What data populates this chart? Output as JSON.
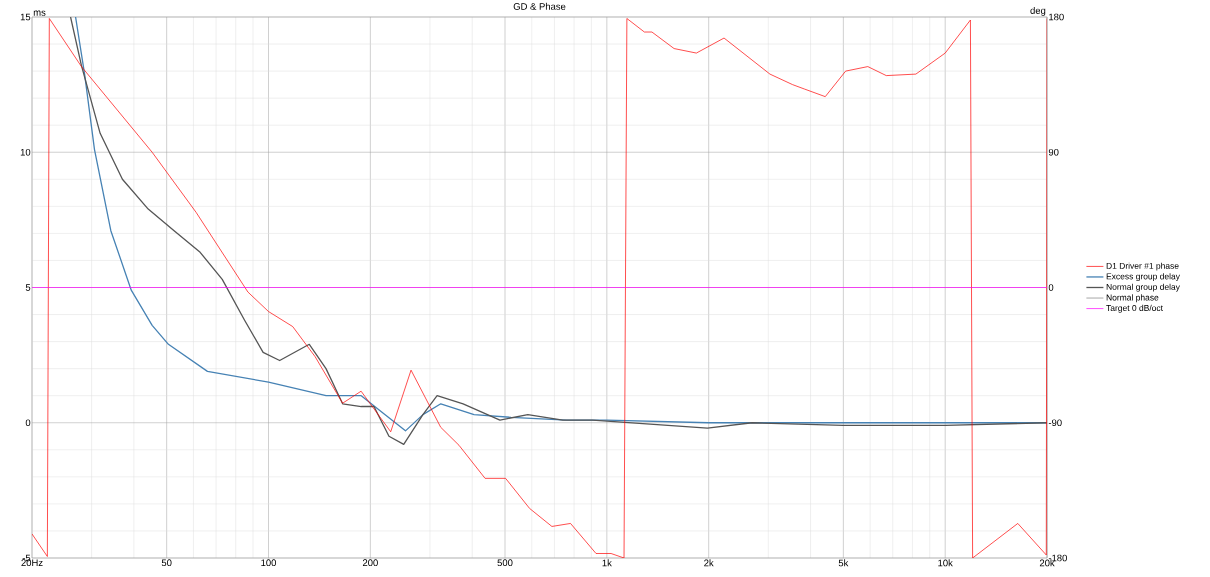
{
  "chart_data": {
    "type": "line",
    "title": "GD & Phase",
    "ylabel": "ms",
    "y2label": "deg",
    "xlim": [
      20,
      20000
    ],
    "log": "x",
    "xticks": [
      {
        "value": 20,
        "label": "20Hz"
      },
      50,
      100,
      200,
      500,
      {
        "value": 1000,
        "label": "1k"
      },
      {
        "value": 2000,
        "label": "2k"
      },
      {
        "value": 5000,
        "label": "5k"
      },
      {
        "value": 10000,
        "label": "10k"
      },
      {
        "value": 20000,
        "label": "20k"
      }
    ],
    "ylim": [
      -5,
      15
    ],
    "yticks": [
      -5,
      0,
      5,
      10,
      15
    ],
    "y2lim": [
      -180,
      180
    ],
    "y2ticks": [
      -180,
      -90,
      0,
      90,
      180
    ],
    "grid": true,
    "legend": "right",
    "marker": "none",
    "line_style": "solid",
    "series": [
      {
        "name": "D1 Driver #1 phase",
        "color": "#ff0000",
        "axis": "y2",
        "x": [
          20,
          22.2,
          22.5,
          28,
          45.3,
          61.1,
          86.9,
          100,
          117.9,
          137.3,
          165.6,
          187.8,
          229.7,
          263.8,
          322.8,
          365.6,
          436.6,
          502,
          591,
          688,
          781,
          929,
          1029,
          1124,
          1146,
          1291,
          1359,
          1580,
          1839,
          2220,
          3034,
          3539,
          3845,
          4421,
          5079,
          5906,
          6698,
          8191,
          10000,
          11872,
          12052,
          16390,
          19900,
          20000
        ],
        "values": [
          -164,
          -179,
          179,
          147,
          90,
          50,
          -3,
          -16,
          -26,
          -46,
          -77,
          -69,
          -96,
          -55,
          -93,
          -105,
          -127,
          -127,
          -147,
          -159,
          -157,
          -177,
          -177,
          -180,
          179,
          170,
          170,
          159,
          156,
          166,
          142,
          135,
          132,
          127,
          144,
          147,
          141,
          142,
          156,
          178,
          -180,
          -157,
          -178,
          179
        ]
      },
      {
        "name": "Excess group delay",
        "color": "#4682b4",
        "axis": "y",
        "x": [
          26.9,
          28.6,
          30.6,
          34.2,
          39.3,
          45.3,
          50.6,
          66,
          100,
          148,
          188,
          216,
          254,
          286,
          323,
          405,
          521,
          761,
          1000,
          2000,
          5000,
          10000,
          20000
        ],
        "values": [
          15,
          12.9,
          10.1,
          7.1,
          4.9,
          3.6,
          2.9,
          1.9,
          1.5,
          1.0,
          1.0,
          0.4,
          -0.3,
          0.3,
          0.7,
          0.3,
          0.2,
          0.1,
          0.1,
          0,
          0,
          0,
          0
        ]
      },
      {
        "name": "Normal group delay",
        "color": "#555555",
        "axis": "y",
        "x": [
          26,
          28,
          31.8,
          37,
          44.1,
          52.6,
          62.8,
          73,
          84.9,
          96.4,
          107.9,
          132,
          147.9,
          165.6,
          188,
          205,
          227,
          251,
          286,
          315,
          376,
          483,
          584,
          741,
          908,
          1983,
          2687,
          5000,
          10000,
          20000
        ],
        "values": [
          15,
          13.2,
          10.7,
          9.0,
          7.9,
          7.1,
          6.3,
          5.3,
          3.8,
          2.6,
          2.3,
          2.9,
          2.0,
          0.7,
          0.6,
          0.6,
          -0.5,
          -0.8,
          0.3,
          1.0,
          0.7,
          0.1,
          0.3,
          0.1,
          0.1,
          -0.2,
          0,
          -0.1,
          -0.1,
          0
        ]
      },
      {
        "name": "Normal phase",
        "color": "#808080",
        "axis": "y2"
      },
      {
        "name": "Target 0 dB/oct",
        "color": "#ff00ff",
        "axis": "y2",
        "x": [
          20,
          20000
        ],
        "values": [
          0,
          0
        ]
      }
    ]
  }
}
